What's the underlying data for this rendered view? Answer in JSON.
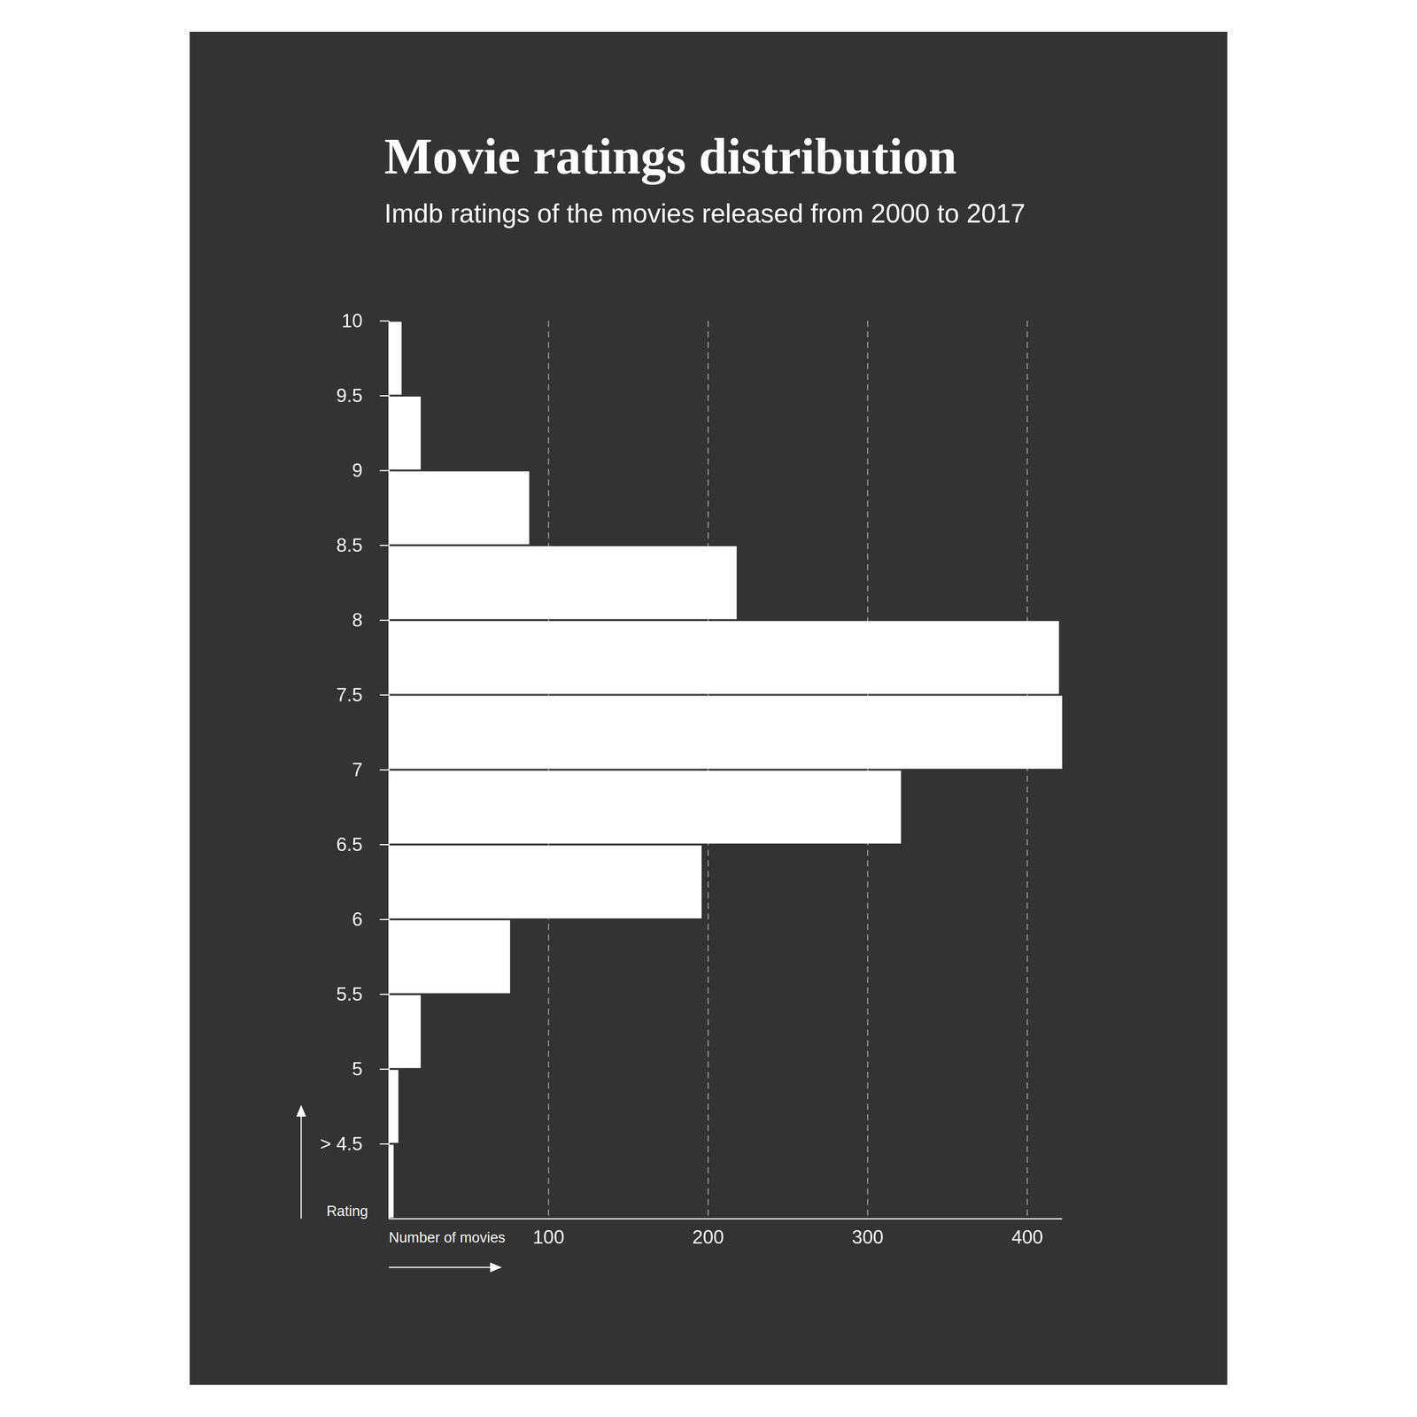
{
  "chart_data": {
    "type": "histogram",
    "orientation": "horizontal",
    "title": "Movie ratings distribution",
    "subtitle": "Imdb ratings of the movies released from 2000 to 2017",
    "x_label": "Number of movies",
    "y_label": "Rating",
    "bins": [
      4,
      4.5,
      5,
      5.5,
      6,
      6.5,
      7,
      7.5,
      8,
      8.5,
      9,
      9.5,
      10
    ],
    "values": [
      3,
      6,
      20,
      76,
      196,
      321,
      422,
      420,
      218,
      88,
      20,
      8
    ],
    "color": "#ffffff",
    "xlim": [
      0,
      422
    ],
    "xticks": [
      100,
      200,
      300,
      400
    ],
    "ylim": [
      4,
      10
    ],
    "yticks": [
      {
        "value": 4.5,
        "label": "> 4.5"
      },
      5,
      5.5,
      6,
      6.5,
      7,
      7.5,
      8,
      8.5,
      9,
      9.5,
      10
    ],
    "grid": true
  }
}
